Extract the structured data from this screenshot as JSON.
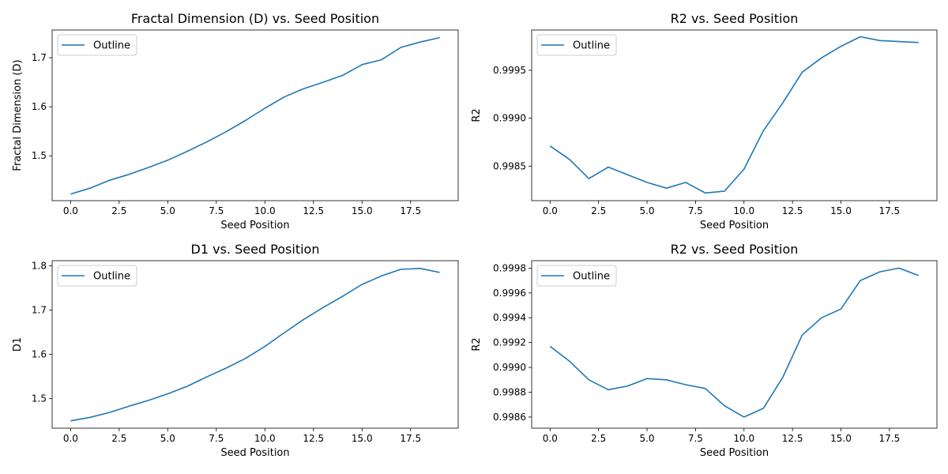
{
  "colors": {
    "line": "#1f77b4",
    "axes": "#000000",
    "legend_border": "#cccccc",
    "background": "#ffffff"
  },
  "chart_data": [
    {
      "type": "line",
      "title": "Fractal Dimension (D) vs. Seed Position",
      "xlabel": "Seed Position",
      "ylabel": "Fractal Dimension (D)",
      "xlim": [
        -0.95,
        19.95
      ],
      "ylim": [
        1.4085,
        1.7565
      ],
      "xticks": [
        0,
        2.5,
        5,
        7.5,
        10,
        12.5,
        15,
        17.5
      ],
      "xtick_labels": [
        "0.0",
        "2.5",
        "5.0",
        "7.5",
        "10.0",
        "12.5",
        "15.0",
        "17.5"
      ],
      "yticks": [
        1.5,
        1.6,
        1.7
      ],
      "ytick_labels": [
        "1.5",
        "1.6",
        "1.7"
      ],
      "grid": false,
      "legend": "upper left",
      "series": [
        {
          "name": "Outline",
          "x": [
            0,
            1,
            2,
            3,
            4,
            5,
            6,
            7,
            8,
            9,
            10,
            11,
            12,
            13,
            14,
            15,
            16,
            17,
            18,
            19
          ],
          "y": [
            1.422,
            1.434,
            1.45,
            1.462,
            1.476,
            1.491,
            1.509,
            1.528,
            1.549,
            1.572,
            1.597,
            1.62,
            1.637,
            1.65,
            1.664,
            1.686,
            1.696,
            1.721,
            1.732,
            1.741
          ]
        }
      ]
    },
    {
      "type": "line",
      "title": "R2 vs. Seed Position",
      "xlabel": "Seed Position",
      "ylabel": "R2",
      "xlim": [
        -0.95,
        19.95
      ],
      "ylim": [
        0.99814,
        0.99992
      ],
      "xticks": [
        0,
        2.5,
        5,
        7.5,
        10,
        12.5,
        15,
        17.5
      ],
      "xtick_labels": [
        "0.0",
        "2.5",
        "5.0",
        "7.5",
        "10.0",
        "12.5",
        "15.0",
        "17.5"
      ],
      "yticks": [
        0.9985,
        0.999,
        0.9995
      ],
      "ytick_labels": [
        "0.9985",
        "0.9990",
        "0.9995"
      ],
      "grid": false,
      "legend": "upper left",
      "series": [
        {
          "name": "Outline",
          "x": [
            0,
            1,
            2,
            3,
            4,
            5,
            6,
            7,
            8,
            9,
            10,
            11,
            12,
            13,
            14,
            15,
            16,
            17,
            18,
            19
          ],
          "y": [
            0.99871,
            0.99857,
            0.99837,
            0.99849,
            0.99841,
            0.99833,
            0.99827,
            0.99833,
            0.99822,
            0.99824,
            0.99847,
            0.99887,
            0.99916,
            0.99948,
            0.99963,
            0.99975,
            0.99985,
            0.99981,
            0.9998,
            0.99979
          ]
        }
      ]
    },
    {
      "type": "line",
      "title": "D1 vs. Seed Position",
      "xlabel": "Seed Position",
      "ylabel": "D1",
      "xlim": [
        -0.95,
        19.95
      ],
      "ylim": [
        1.4335,
        1.8115
      ],
      "xticks": [
        0,
        2.5,
        5,
        7.5,
        10,
        12.5,
        15,
        17.5
      ],
      "xtick_labels": [
        "0.0",
        "2.5",
        "5.0",
        "7.5",
        "10.0",
        "12.5",
        "15.0",
        "17.5"
      ],
      "yticks": [
        1.5,
        1.6,
        1.7,
        1.8
      ],
      "ytick_labels": [
        "1.5",
        "1.6",
        "1.7",
        "1.8"
      ],
      "grid": false,
      "legend": "upper left",
      "series": [
        {
          "name": "Outline",
          "x": [
            0,
            1,
            2,
            3,
            4,
            5,
            6,
            7,
            8,
            9,
            10,
            11,
            12,
            13,
            14,
            15,
            16,
            17,
            18,
            19
          ],
          "y": [
            1.45,
            1.458,
            1.469,
            1.483,
            1.496,
            1.511,
            1.528,
            1.549,
            1.569,
            1.591,
            1.618,
            1.649,
            1.679,
            1.706,
            1.731,
            1.758,
            1.777,
            1.792,
            1.794,
            1.785
          ]
        }
      ]
    },
    {
      "type": "line",
      "title": "R2 vs. Seed Position",
      "xlabel": "Seed Position",
      "ylabel": "R2",
      "xlim": [
        -0.95,
        19.95
      ],
      "ylim": [
        0.99851,
        0.99986
      ],
      "xticks": [
        0,
        2.5,
        5,
        7.5,
        10,
        12.5,
        15,
        17.5
      ],
      "xtick_labels": [
        "0.0",
        "2.5",
        "5.0",
        "7.5",
        "10.0",
        "12.5",
        "15.0",
        "17.5"
      ],
      "yticks": [
        0.9986,
        0.9988,
        0.999,
        0.9992,
        0.9994,
        0.9996,
        0.9998
      ],
      "ytick_labels": [
        "0.9986",
        "0.9988",
        "0.9990",
        "0.9992",
        "0.9994",
        "0.9996",
        "0.9998"
      ],
      "grid": false,
      "legend": "upper left",
      "series": [
        {
          "name": "Outline",
          "x": [
            0,
            1,
            2,
            3,
            4,
            5,
            6,
            7,
            8,
            9,
            10,
            11,
            12,
            13,
            14,
            15,
            16,
            17,
            18,
            19
          ],
          "y": [
            0.99917,
            0.99905,
            0.9989,
            0.99882,
            0.99885,
            0.99891,
            0.9989,
            0.99886,
            0.99883,
            0.99869,
            0.9986,
            0.99867,
            0.99892,
            0.99926,
            0.9994,
            0.99947,
            0.9997,
            0.99977,
            0.9998,
            0.99974
          ]
        }
      ]
    }
  ]
}
